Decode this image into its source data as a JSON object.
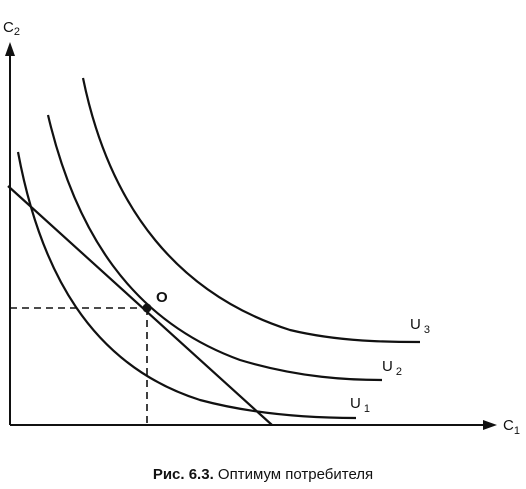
{
  "axes": {
    "y": {
      "label": "C",
      "sub": "2"
    },
    "x": {
      "label": "C",
      "sub": "1"
    }
  },
  "curves": [
    {
      "label": "U",
      "sub": "1"
    },
    {
      "label": "U",
      "sub": "2"
    },
    {
      "label": "U",
      "sub": "3"
    }
  ],
  "point": {
    "label": "O"
  },
  "caption": {
    "number": "Рис. 6.3.",
    "text": "Оптимум потребителя"
  }
}
